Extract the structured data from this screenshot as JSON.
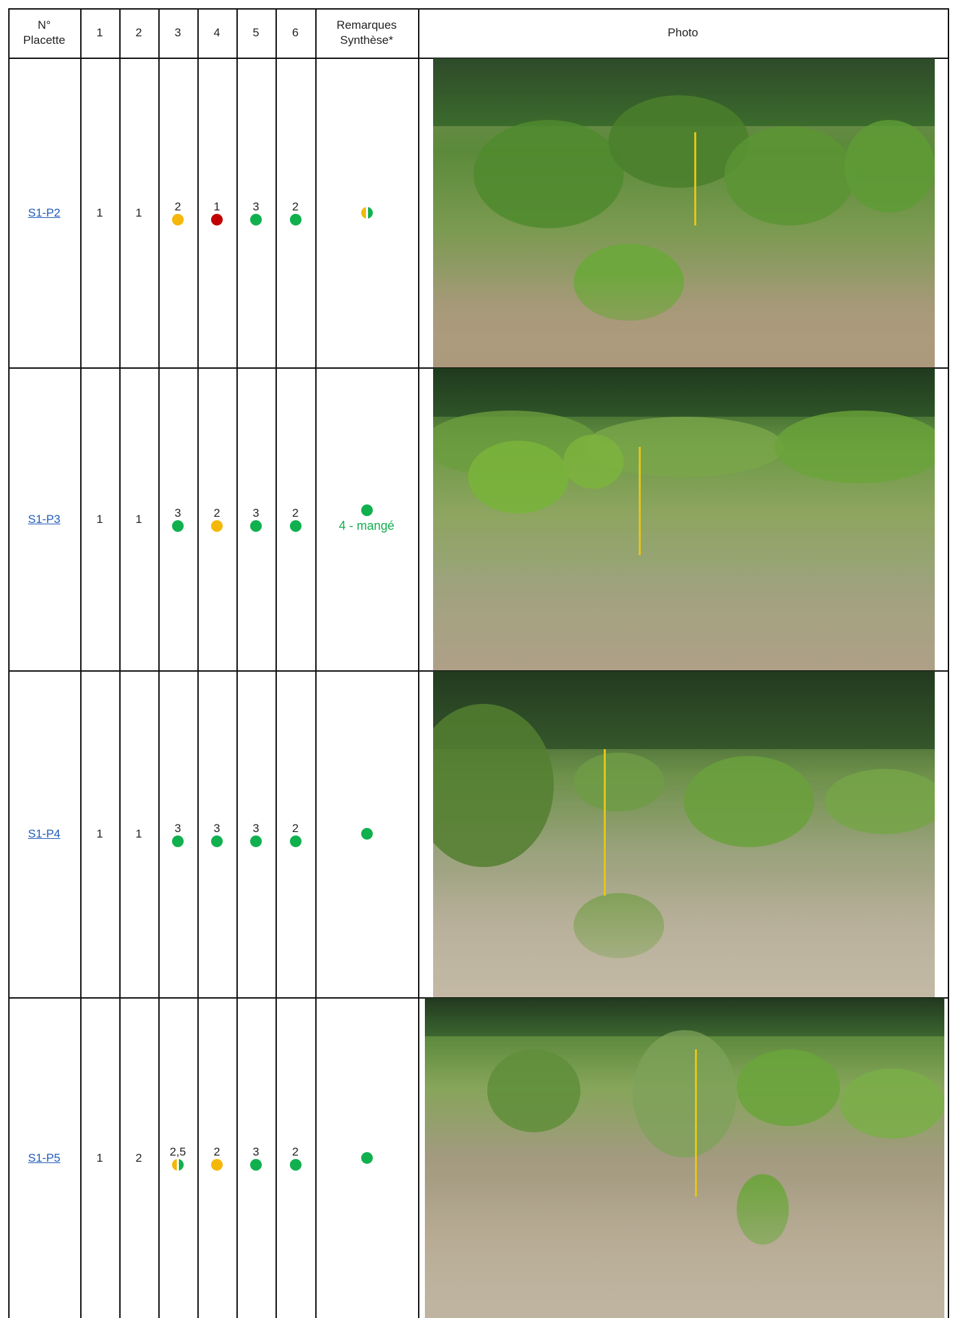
{
  "table": {
    "headers": {
      "plot": "N°\nPlacette",
      "c1": "1",
      "c2": "2",
      "c3": "3",
      "c4": "4",
      "c5": "5",
      "c6": "6",
      "remarks": "Remarques\nSynthèse*",
      "photo": "Photo"
    },
    "rows": [
      {
        "plot": "S1-P2",
        "c1": "1",
        "c2": "1",
        "c3": {
          "value": "2",
          "status": "orange"
        },
        "c4": {
          "value": "1",
          "status": "red"
        },
        "c5": {
          "value": "3",
          "status": "green"
        },
        "c6": {
          "value": "2",
          "status": "green"
        },
        "synthesis": "orange-green",
        "remark": ""
      },
      {
        "plot": "S1-P3",
        "c1": "1",
        "c2": "1",
        "c3": {
          "value": "3",
          "status": "green"
        },
        "c4": {
          "value": "2",
          "status": "orange"
        },
        "c5": {
          "value": "3",
          "status": "green"
        },
        "c6": {
          "value": "2",
          "status": "green"
        },
        "synthesis": "green",
        "remark": "4 - mangé"
      },
      {
        "plot": "S1-P4",
        "c1": "1",
        "c2": "1",
        "c3": {
          "value": "3",
          "status": "green"
        },
        "c4": {
          "value": "3",
          "status": "green"
        },
        "c5": {
          "value": "3",
          "status": "green"
        },
        "c6": {
          "value": "2",
          "status": "green"
        },
        "synthesis": "green",
        "remark": ""
      },
      {
        "plot": "S1-P5",
        "c1": "1",
        "c2": "2",
        "c3": {
          "value": "2,5",
          "status": "orange-green"
        },
        "c4": {
          "value": "2",
          "status": "orange"
        },
        "c5": {
          "value": "3",
          "status": "green"
        },
        "c6": {
          "value": "2",
          "status": "green"
        },
        "synthesis": "green",
        "remark": ""
      }
    ]
  },
  "colors": {
    "green": "#11b04f",
    "orange": "#f5b70a",
    "red": "#c00000",
    "link": "#1f5bb8"
  }
}
